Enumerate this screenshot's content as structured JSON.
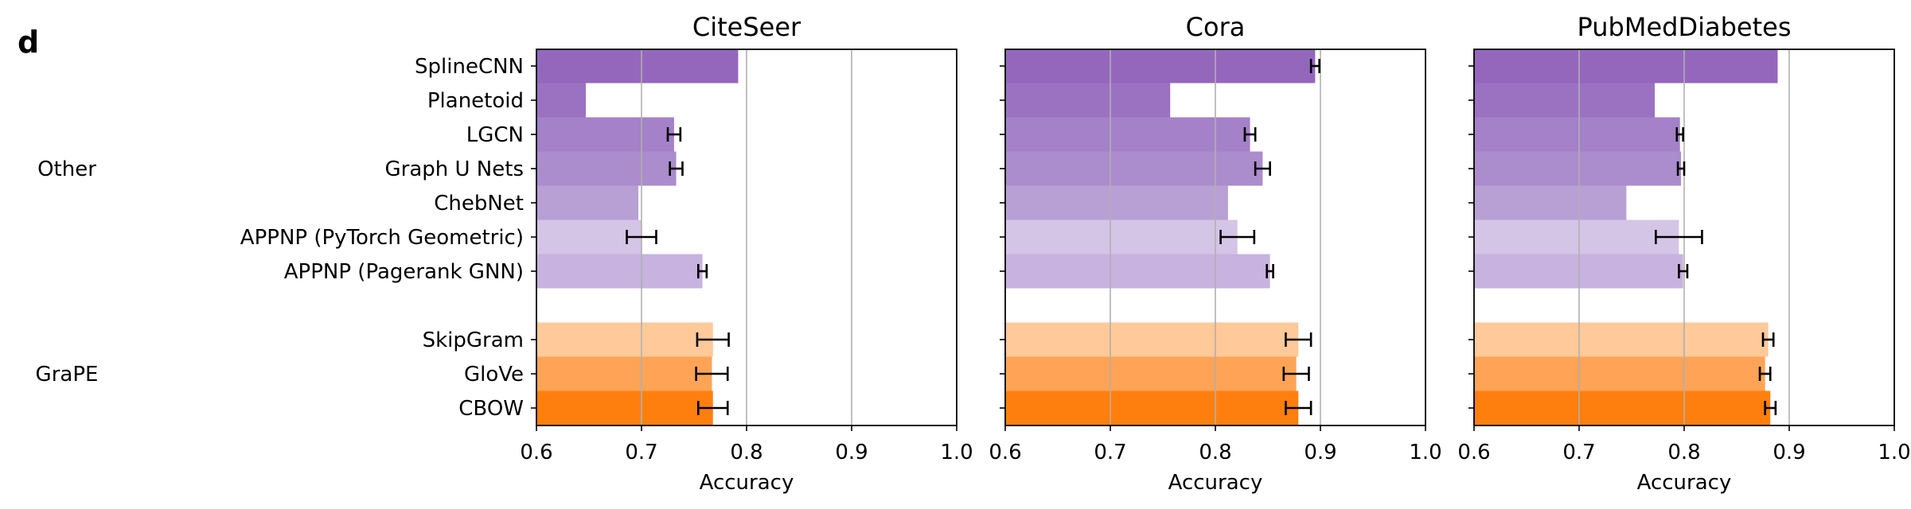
{
  "panel_letter": "d",
  "chart_data": {
    "type": "bar",
    "orientation": "horizontal",
    "groups": [
      {
        "label": "Other",
        "categories": [
          "SplineCNN",
          "Planetoid",
          "LGCN",
          "Graph U Nets",
          "ChebNet",
          "APPNP (PyTorch Geometric)",
          "APPNP (Pagerank GNN)"
        ]
      },
      {
        "label": "GraPE",
        "categories": [
          "SkipGram",
          "GloVe",
          "CBOW"
        ]
      }
    ],
    "categories": [
      "SplineCNN",
      "Planetoid",
      "LGCN",
      "Graph U Nets",
      "ChebNet",
      "APPNP (PyTorch Geometric)",
      "APPNP (Pagerank GNN)",
      "SkipGram",
      "GloVe",
      "CBOW"
    ],
    "colors": [
      "#9467bd",
      "#9b72c2",
      "#a481c8",
      "#ab8ccc",
      "#b8a0d4",
      "#d4c4e6",
      "#c8b2df",
      "#ffc999",
      "#ffa456",
      "#ff7f0e"
    ],
    "xlim": [
      0.6,
      1.0
    ],
    "xticks": [
      "0.6",
      "0.7",
      "0.8",
      "0.9",
      "1.0"
    ],
    "xtick_values": [
      0.6,
      0.7,
      0.8,
      0.9,
      1.0
    ],
    "grid": "x",
    "panels": [
      {
        "title": "CiteSeer",
        "xlabel": "Accuracy",
        "values": [
          0.792,
          0.647,
          0.731,
          0.733,
          0.697,
          0.7,
          0.758,
          0.768,
          0.767,
          0.768
        ],
        "errors": [
          null,
          null,
          0.006,
          0.006,
          null,
          0.014,
          0.004,
          0.015,
          0.015,
          0.014
        ]
      },
      {
        "title": "Cora",
        "xlabel": "Accuracy",
        "values": [
          0.895,
          0.757,
          0.833,
          0.845,
          0.812,
          0.821,
          0.852,
          0.879,
          0.877,
          0.879
        ],
        "errors": [
          0.004,
          null,
          0.005,
          0.007,
          null,
          0.016,
          0.003,
          0.012,
          0.012,
          0.012
        ]
      },
      {
        "title": "PubMedDiabetes",
        "xlabel": "Accuracy",
        "values": [
          0.889,
          0.772,
          0.796,
          0.797,
          0.745,
          0.795,
          0.799,
          0.88,
          0.877,
          0.882
        ],
        "errors": [
          null,
          null,
          0.003,
          0.003,
          null,
          0.022,
          0.004,
          0.005,
          0.005,
          0.005
        ]
      }
    ]
  }
}
